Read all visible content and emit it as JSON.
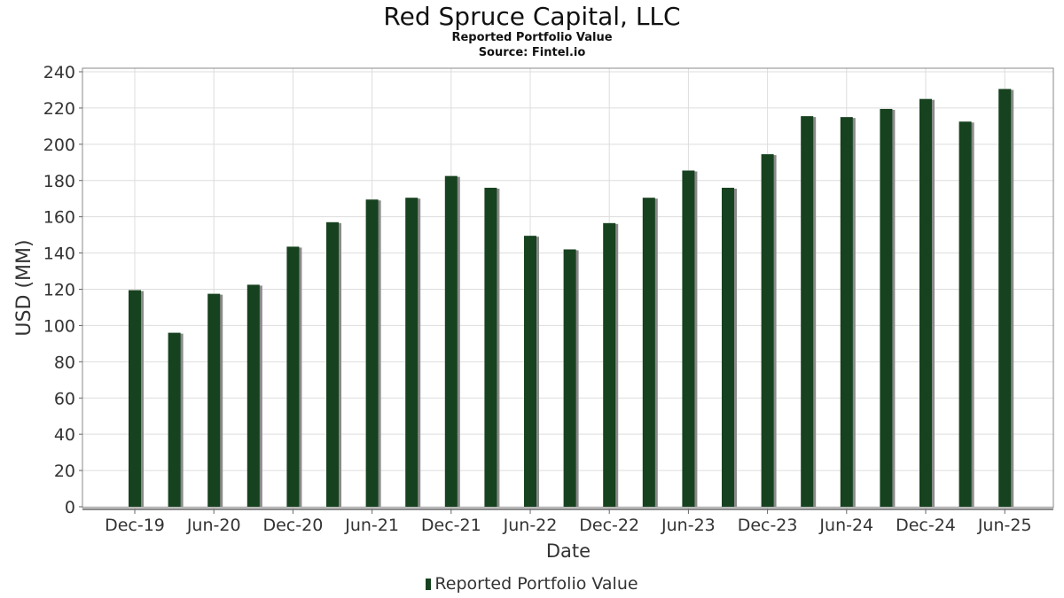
{
  "chart_data": {
    "type": "bar",
    "title": "Red Spruce Capital, LLC",
    "subtitle": "Reported Portfolio Value",
    "source": "Source: Fintel.io",
    "xlabel": "Date",
    "ylabel": "USD (MM)",
    "ylim": [
      0,
      240
    ],
    "y_ticks": [
      0,
      20,
      40,
      60,
      80,
      100,
      120,
      140,
      160,
      180,
      200,
      220,
      240
    ],
    "x_tick_labels": [
      "Dec-19",
      "Jun-20",
      "Dec-20",
      "Jun-21",
      "Dec-21",
      "Jun-22",
      "Dec-22",
      "Jun-23",
      "Dec-23",
      "Jun-24",
      "Dec-24",
      "Jun-25"
    ],
    "categories": [
      "Dec-19",
      "Mar-20",
      "Jun-20",
      "Sep-20",
      "Dec-20",
      "Mar-21",
      "Jun-21",
      "Sep-21",
      "Dec-21",
      "Mar-22",
      "Jun-22",
      "Sep-22",
      "Dec-22",
      "Mar-23",
      "Jun-23",
      "Sep-23",
      "Dec-23",
      "Mar-24",
      "Jun-24",
      "Sep-24",
      "Dec-24",
      "Mar-25",
      "Jun-25"
    ],
    "series": [
      {
        "name": "Reported Portfolio Value",
        "values": [
          119.5,
          96,
          117.5,
          122.5,
          143.5,
          157,
          169.5,
          170.5,
          182.5,
          176,
          149.5,
          142,
          156.5,
          170.5,
          185.5,
          176,
          194.5,
          215.5,
          215,
          219.5,
          225,
          212.5,
          230.5
        ]
      }
    ],
    "bar_color": "#17421f",
    "shadow_color": "#8a8a8a",
    "grid": true,
    "legend_position": "bottom"
  }
}
